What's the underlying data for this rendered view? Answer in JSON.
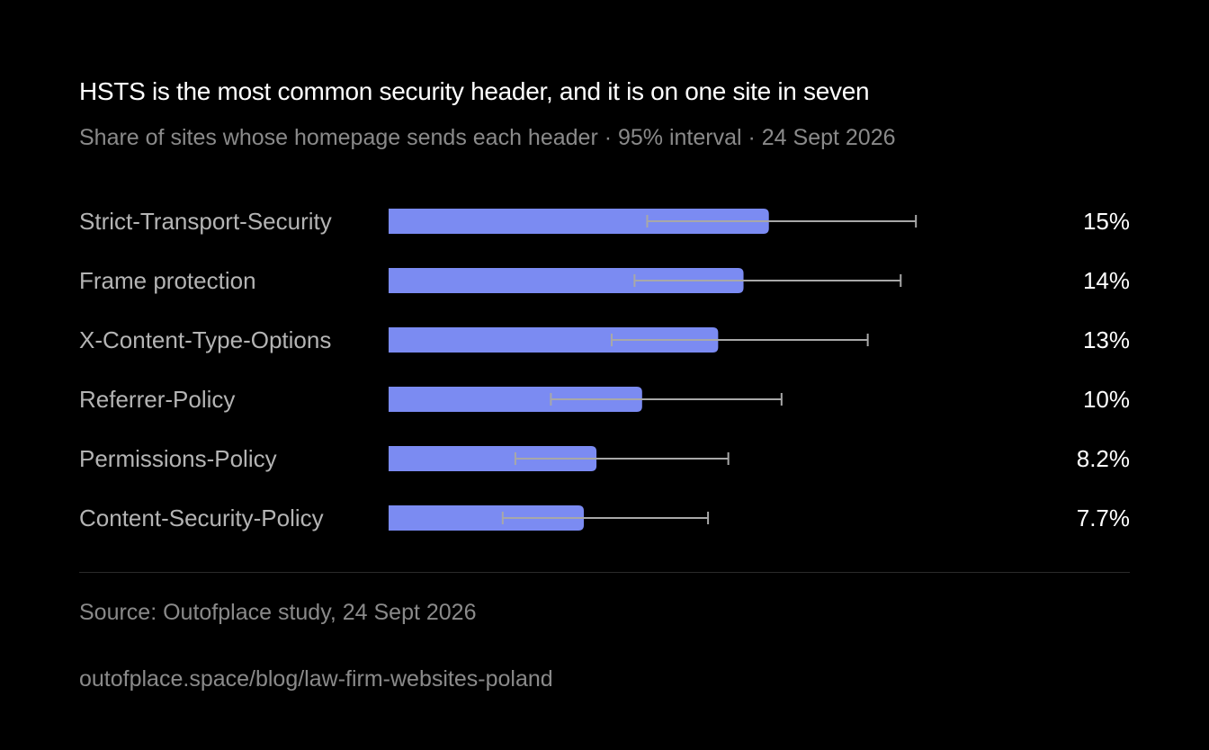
{
  "title": "HSTS is the most common security header, and it is on one site in seven",
  "subtitle": "Share of sites whose homepage sends each header · 95% interval · 24 Sept 2026",
  "source": "Source: Outofplace study, 24 Sept 2026",
  "url": "outofplace.space/blog/law-firm-websites-poland",
  "colors": {
    "bar": "#7b8bf2",
    "error_bar": "#a8a8a8",
    "label": "#b4b4b4",
    "value_label": "#ffffff"
  },
  "chart_data": {
    "type": "bar",
    "orientation": "horizontal",
    "categories": [
      "Strict-Transport-Security",
      "Frame protection",
      "X-Content-Type-Options",
      "Referrer-Policy",
      "Permissions-Policy",
      "Content-Security-Policy"
    ],
    "values": [
      15,
      14,
      13,
      10,
      8.2,
      7.7
    ],
    "value_labels": [
      "15%",
      "14%",
      "13%",
      "10%",
      "8.2%",
      "7.7%"
    ],
    "ci_low": [
      10.2,
      9.7,
      8.8,
      6.4,
      5.0,
      4.5
    ],
    "ci_high": [
      20.8,
      20.2,
      18.9,
      15.5,
      13.4,
      12.6
    ],
    "unit": "%",
    "xlim": [
      0,
      26.4
    ],
    "grid": false,
    "legend": "none"
  }
}
